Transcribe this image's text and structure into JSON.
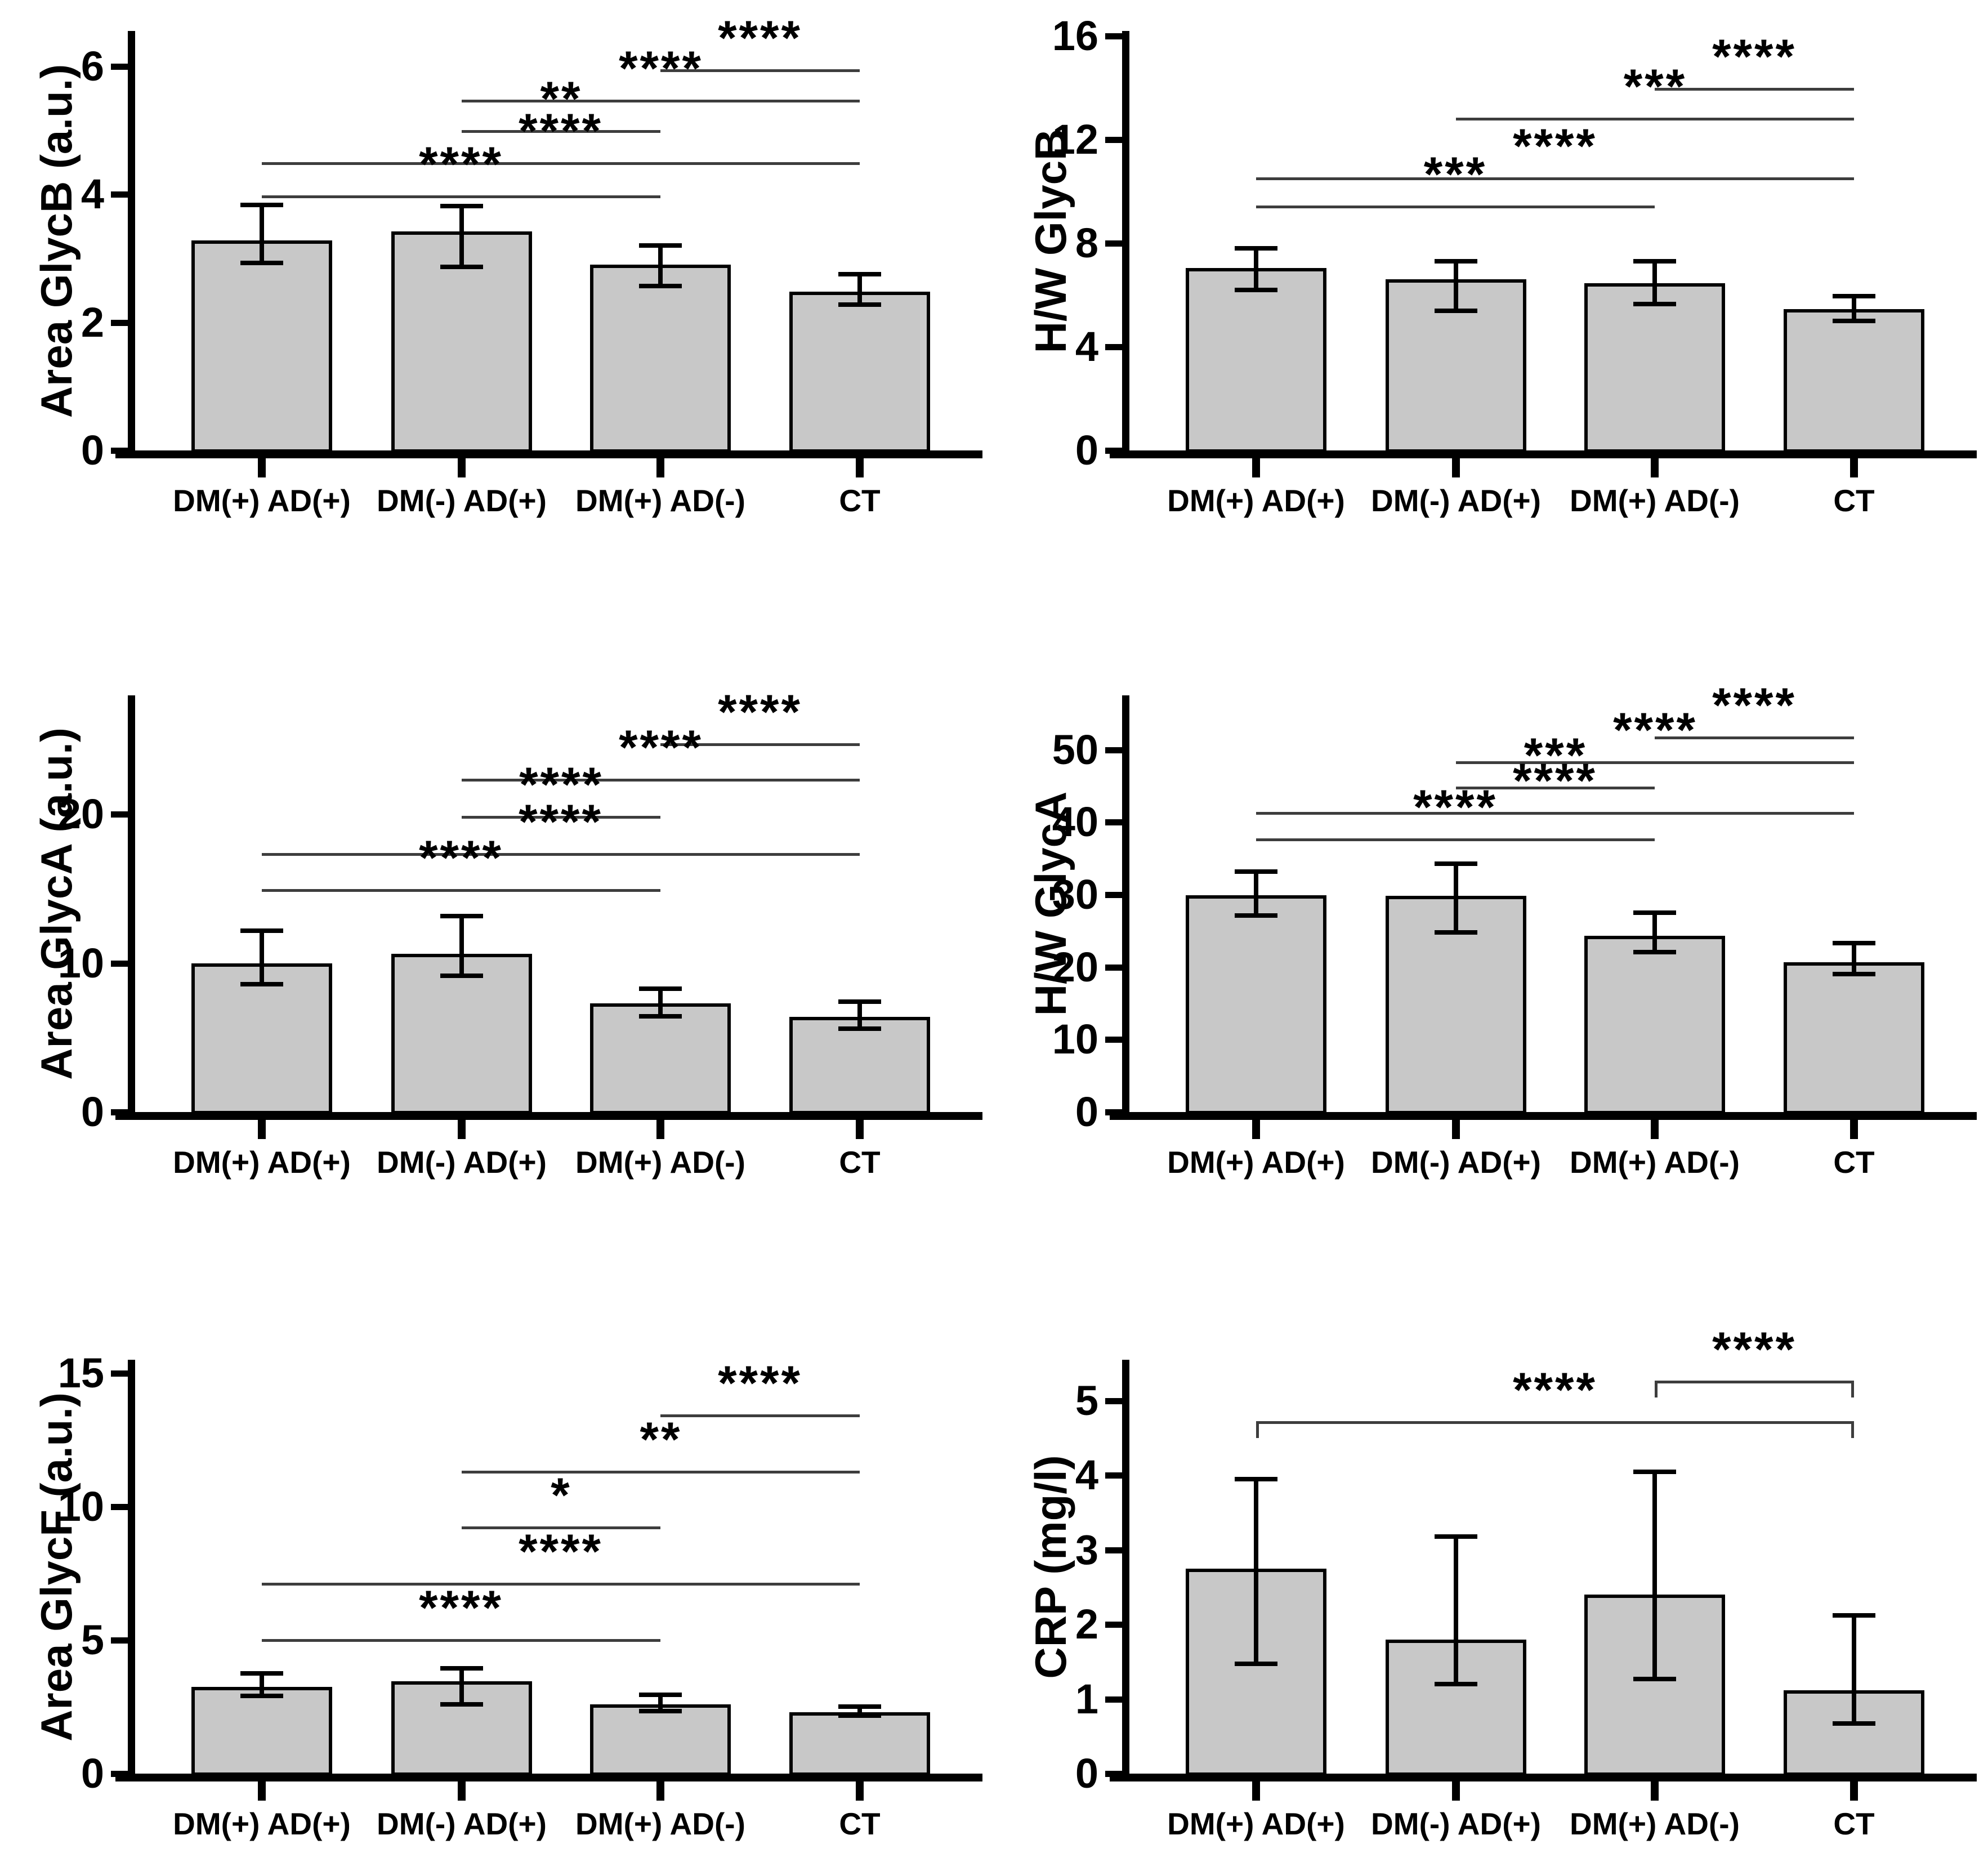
{
  "figure": {
    "background": "#ffffff",
    "bar_fill": "#c8c8c8",
    "bar_border": "#000000",
    "sig_line_color": "#3d3d3d",
    "categories": [
      "DM(+) AD(+)",
      "DM(-) AD(+)",
      "DM(+) AD(-)",
      "CT"
    ]
  },
  "chart_data": [
    {
      "type": "bar",
      "name": "area-glycb",
      "ylabel": "Area GlycB (a.u.)",
      "xlabel": "",
      "categories": [
        "DM(+) AD(+)",
        "DM(-) AD(+)",
        "DM(+) AD(-)",
        "CT"
      ],
      "values": [
        3.28,
        3.42,
        2.9,
        2.48
      ],
      "err_up": [
        0.55,
        0.4,
        0.3,
        0.27
      ],
      "err_down": [
        0.35,
        0.55,
        0.33,
        0.2
      ],
      "yticks": [
        0,
        2,
        4,
        6
      ],
      "ylim": [
        0,
        6.55
      ],
      "grid": false,
      "brackets": [
        {
          "from": 2,
          "to": 3,
          "y": 5.95,
          "label": "****",
          "caps": false
        },
        {
          "from": 1,
          "to": 3,
          "y": 5.48,
          "label": "****",
          "caps": false
        },
        {
          "from": 1,
          "to": 2,
          "y": 5.0,
          "label": "**",
          "caps": false
        },
        {
          "from": 0,
          "to": 3,
          "y": 4.5,
          "label": "****",
          "caps": false
        },
        {
          "from": 0,
          "to": 2,
          "y": 3.98,
          "label": "****",
          "caps": false
        }
      ]
    },
    {
      "type": "bar",
      "name": "hw-glycb",
      "ylabel": "H/W GlycB",
      "xlabel": "",
      "categories": [
        "DM(+) AD(+)",
        "DM(-) AD(+)",
        "DM(+) AD(-)",
        "CT"
      ],
      "values": [
        7.05,
        6.6,
        6.45,
        5.45
      ],
      "err_up": [
        0.75,
        0.7,
        0.85,
        0.5
      ],
      "err_down": [
        0.85,
        1.2,
        0.8,
        0.45
      ],
      "yticks": [
        0,
        4,
        8,
        12,
        16
      ],
      "ylim": [
        0,
        16.2
      ],
      "grid": false,
      "brackets": [
        {
          "from": 2,
          "to": 3,
          "y": 14.0,
          "label": "****",
          "caps": false
        },
        {
          "from": 1,
          "to": 3,
          "y": 12.85,
          "label": "***",
          "caps": false
        },
        {
          "from": 0,
          "to": 3,
          "y": 10.55,
          "label": "****",
          "caps": false
        },
        {
          "from": 0,
          "to": 2,
          "y": 9.45,
          "label": "***",
          "caps": false
        }
      ]
    },
    {
      "type": "bar",
      "name": "area-glyca",
      "ylabel": "Area GlycA (a.u.)",
      "xlabel": "",
      "categories": [
        "DM(+) AD(+)",
        "DM(-) AD(+)",
        "DM(+) AD(-)",
        "CT"
      ],
      "values": [
        10.0,
        10.65,
        7.3,
        6.4
      ],
      "err_up": [
        2.2,
        2.5,
        1.0,
        1.0
      ],
      "err_down": [
        1.4,
        1.5,
        0.85,
        0.8
      ],
      "yticks": [
        0,
        10,
        20
      ],
      "ylim": [
        0,
        28
      ],
      "grid": false,
      "brackets": [
        {
          "from": 2,
          "to": 3,
          "y": 24.8,
          "label": "****",
          "caps": false
        },
        {
          "from": 1,
          "to": 3,
          "y": 22.4,
          "label": "****",
          "caps": false
        },
        {
          "from": 1,
          "to": 2,
          "y": 19.9,
          "label": "****",
          "caps": false
        },
        {
          "from": 0,
          "to": 3,
          "y": 17.4,
          "label": "****",
          "caps": false
        },
        {
          "from": 0,
          "to": 2,
          "y": 15.0,
          "label": "****",
          "caps": false
        }
      ]
    },
    {
      "type": "bar",
      "name": "hw-glyca",
      "ylabel": "H/W GlycA",
      "xlabel": "",
      "categories": [
        "DM(+) AD(+)",
        "DM(-) AD(+)",
        "DM(+) AD(-)",
        "CT"
      ],
      "values": [
        29.9,
        29.8,
        24.3,
        20.7
      ],
      "err_up": [
        3.3,
        4.5,
        3.2,
        2.6
      ],
      "err_down": [
        2.8,
        5.0,
        2.2,
        1.7
      ],
      "yticks": [
        0,
        10,
        20,
        30,
        40,
        50
      ],
      "ylim": [
        0,
        57.5
      ],
      "grid": false,
      "brackets": [
        {
          "from": 2,
          "to": 3,
          "y": 51.8,
          "label": "****",
          "caps": false
        },
        {
          "from": 1,
          "to": 3,
          "y": 48.4,
          "label": "****",
          "caps": false
        },
        {
          "from": 1,
          "to": 2,
          "y": 44.9,
          "label": "***",
          "caps": false
        },
        {
          "from": 0,
          "to": 3,
          "y": 41.4,
          "label": "****",
          "caps": false
        },
        {
          "from": 0,
          "to": 2,
          "y": 37.8,
          "label": "****",
          "caps": false
        }
      ]
    },
    {
      "type": "bar",
      "name": "area-glycf",
      "ylabel": "Area GlycF (a.u.)",
      "xlabel": "",
      "categories": [
        "DM(+) AD(+)",
        "DM(-) AD(+)",
        "DM(+) AD(-)",
        "CT"
      ],
      "values": [
        3.25,
        3.45,
        2.6,
        2.3
      ],
      "err_up": [
        0.5,
        0.5,
        0.35,
        0.22
      ],
      "err_down": [
        0.35,
        0.85,
        0.25,
        0.13
      ],
      "yticks": [
        0,
        5,
        10,
        15
      ],
      "ylim": [
        0,
        15.5
      ],
      "grid": false,
      "brackets": [
        {
          "from": 2,
          "to": 3,
          "y": 13.45,
          "label": "****",
          "caps": false
        },
        {
          "from": 1,
          "to": 3,
          "y": 11.35,
          "label": "**",
          "caps": false
        },
        {
          "from": 1,
          "to": 2,
          "y": 9.25,
          "label": "*",
          "caps": false
        },
        {
          "from": 0,
          "to": 3,
          "y": 7.15,
          "label": "****",
          "caps": false
        },
        {
          "from": 0,
          "to": 2,
          "y": 5.05,
          "label": "****",
          "caps": false
        }
      ]
    },
    {
      "type": "bar",
      "name": "crp",
      "ylabel": "CRP (mg/l)",
      "xlabel": "",
      "categories": [
        "DM(+) AD(+)",
        "DM(-) AD(+)",
        "DM(+) AD(-)",
        "CT"
      ],
      "values": [
        2.75,
        1.8,
        2.4,
        1.12
      ],
      "err_up": [
        1.2,
        1.38,
        1.65,
        1.0
      ],
      "err_down": [
        1.28,
        0.6,
        1.13,
        0.45
      ],
      "yticks": [
        0,
        1,
        2,
        3,
        4,
        5
      ],
      "ylim": [
        0,
        5.55
      ],
      "grid": false,
      "brackets": [
        {
          "from": 2,
          "to": 3,
          "y": 5.27,
          "label": "****",
          "caps": true
        },
        {
          "from": 0,
          "to": 3,
          "y": 4.73,
          "label": "****",
          "caps": true
        }
      ]
    }
  ]
}
